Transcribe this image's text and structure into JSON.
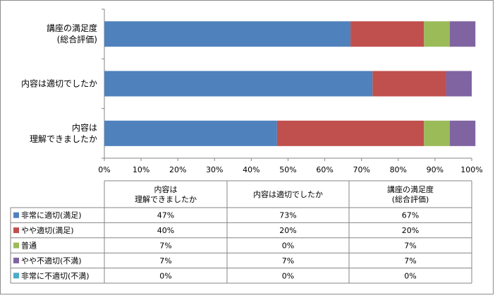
{
  "chart_data": {
    "type": "bar",
    "orientation": "horizontal",
    "stacked": "percent",
    "categories": [
      [
        "講座の満足度",
        "(総合評価)"
      ],
      [
        "内容は適切でしたか"
      ],
      [
        "内容は",
        "理解できましたか"
      ]
    ],
    "series": [
      {
        "name": "非常に適切(満足)",
        "values": [
          67,
          73,
          47
        ],
        "color": "#4f81bd"
      },
      {
        "name": "やや適切(満足)",
        "values": [
          20,
          20,
          40
        ],
        "color": "#c0504d"
      },
      {
        "name": "普通",
        "values": [
          7,
          0,
          7
        ],
        "color": "#9bbb59"
      },
      {
        "name": "やや不適切(不満)",
        "values": [
          7,
          7,
          7
        ],
        "color": "#8064a2"
      },
      {
        "name": "非常に不適切(不満)",
        "values": [
          0,
          0,
          0
        ],
        "color": "#4bacc6"
      }
    ],
    "xlim": [
      0,
      100
    ],
    "xticks": [
      "0%",
      "10%",
      "20%",
      "30%",
      "40%",
      "50%",
      "60%",
      "70%",
      "80%",
      "90%",
      "100%"
    ],
    "grid": false,
    "data_table": {
      "columns": [
        [
          "内容は",
          "理解できましたか"
        ],
        [
          "内容は適切でしたか"
        ],
        [
          "講座の満足度",
          "(総合評価)"
        ]
      ],
      "rows": [
        [
          "47%",
          "73%",
          "67%"
        ],
        [
          "40%",
          "20%",
          "20%"
        ],
        [
          "7%",
          "0%",
          "7%"
        ],
        [
          "7%",
          "7%",
          "7%"
        ],
        [
          "0%",
          "0%",
          "0%"
        ]
      ]
    }
  }
}
